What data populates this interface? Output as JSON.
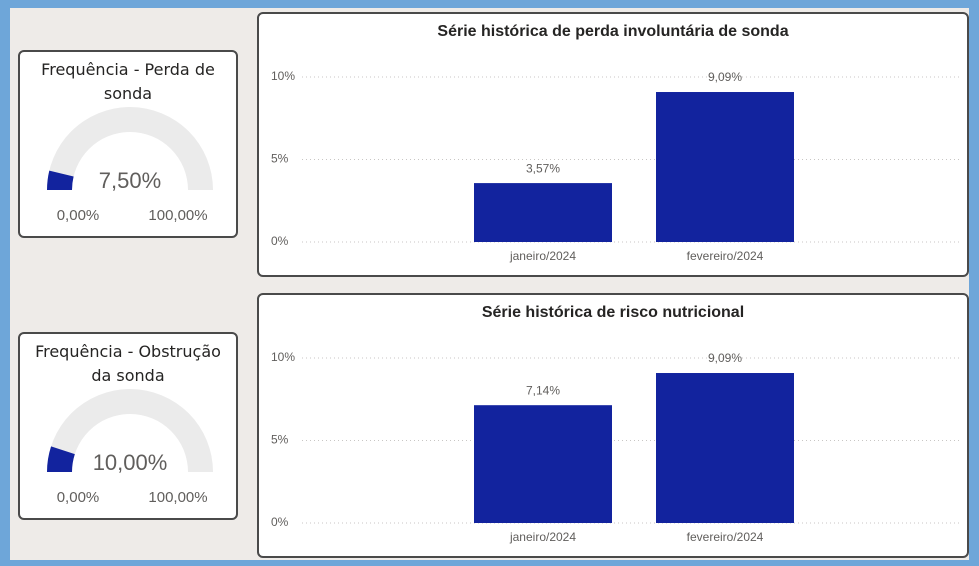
{
  "chart_data": [
    {
      "type": "gauge",
      "title": "Frequência - Perda de sonda",
      "values": [
        7.5
      ],
      "value_labels": [
        "7,50%"
      ],
      "ylim": [
        0,
        100
      ],
      "yticks": [
        {
          "value": 0,
          "label": "0,00%"
        },
        {
          "value": 100,
          "label": "100,00%"
        }
      ],
      "color": "#12239e"
    },
    {
      "type": "bar",
      "title": "Série histórica de perda involuntária de sonda",
      "categories": [
        "janeiro/2024",
        "fevereiro/2024"
      ],
      "values": [
        3.57,
        9.09
      ],
      "value_labels": [
        "3,57%",
        "9,09%"
      ],
      "color": "#12239e",
      "ylim": [
        0,
        11
      ],
      "yticks": [
        {
          "value": 0,
          "label": "0%"
        },
        {
          "value": 5,
          "label": "5%"
        },
        {
          "value": 10,
          "label": "10%"
        }
      ],
      "grid": true
    },
    {
      "type": "gauge",
      "title": "Frequência - Obstrução da sonda",
      "values": [
        10
      ],
      "value_labels": [
        "10,00%"
      ],
      "ylim": [
        0,
        100
      ],
      "yticks": [
        {
          "value": 0,
          "label": "0,00%"
        },
        {
          "value": 100,
          "label": "100,00%"
        }
      ],
      "color": "#12239e"
    },
    {
      "type": "bar",
      "title": "Série histórica de risco nutricional",
      "categories": [
        "janeiro/2024",
        "fevereiro/2024"
      ],
      "values": [
        7.14,
        9.09
      ],
      "value_labels": [
        "7,14%",
        "9,09%"
      ],
      "color": "#12239e",
      "ylim": [
        0,
        11
      ],
      "yticks": [
        {
          "value": 0,
          "label": "0%"
        },
        {
          "value": 5,
          "label": "5%"
        },
        {
          "value": 10,
          "label": "10%"
        }
      ],
      "grid": true
    }
  ]
}
